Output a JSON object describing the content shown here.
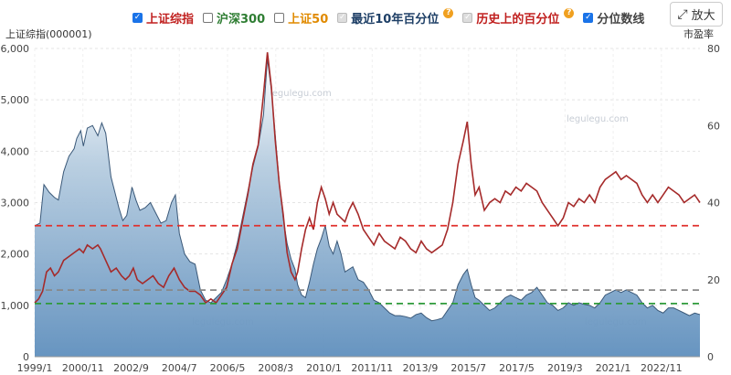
{
  "legend": [
    {
      "label": "上证综指",
      "color": "#c0201f",
      "state": "checked",
      "help": false
    },
    {
      "label": "沪深300",
      "color": "#2e7d32",
      "state": "unchecked",
      "help": false
    },
    {
      "label": "上证50",
      "color": "#e08a00",
      "state": "unchecked",
      "help": false
    },
    {
      "label": "最近10年百分位",
      "color": "#1e3f66",
      "state": "disabled",
      "help": true
    },
    {
      "label": "历史上的百分位",
      "color": "#c0201f",
      "state": "disabled",
      "help": true
    },
    {
      "label": "分位数线",
      "color": "#444444",
      "state": "checked",
      "help": false
    }
  ],
  "zoom_button": {
    "label": "放大",
    "icon": "expand-arrows-icon"
  },
  "watermark": "legulegu.com",
  "chart_data": {
    "type": "area",
    "yleft_label": "上证综指(000001)",
    "yright_label": "市盈率",
    "yleft_lim": [
      0,
      6000
    ],
    "yright_lim": [
      0,
      80
    ],
    "yleft_ticks": [
      "0",
      "1,000",
      "2,000",
      "3,000",
      "4,000",
      "5,000",
      "6,000"
    ],
    "yright_ticks": [
      "0",
      "20",
      "40",
      "60",
      "80"
    ],
    "x_ticks": [
      "1999/1",
      "2000/11",
      "2002/9",
      "2004/7",
      "2006/5",
      "2008/3",
      "2010/1",
      "2011/11",
      "2013/9",
      "2015/7",
      "2017/5",
      "2019/3",
      "2021/1",
      "2022/11"
    ],
    "x_start": 1999.0,
    "x_end": 2024.3,
    "quantile_lines": [
      {
        "axis": "right",
        "value": 34,
        "color": "#e0312d"
      },
      {
        "axis": "right",
        "value": 17.3,
        "color": "#888888"
      },
      {
        "axis": "right",
        "value": 13.8,
        "color": "#2e9a3a"
      }
    ],
    "series": [
      {
        "name": "上证综指",
        "axis": "left",
        "kind": "area",
        "color": "#5a83ad",
        "points": [
          [
            1999.0,
            2550
          ],
          [
            1999.2,
            2600
          ],
          [
            1999.35,
            3350
          ],
          [
            1999.55,
            3200
          ],
          [
            1999.75,
            3100
          ],
          [
            1999.9,
            3050
          ],
          [
            2000.1,
            3600
          ],
          [
            2000.3,
            3900
          ],
          [
            2000.5,
            4050
          ],
          [
            2000.6,
            4250
          ],
          [
            2000.75,
            4400
          ],
          [
            2000.85,
            4100
          ],
          [
            2001.0,
            4450
          ],
          [
            2001.2,
            4500
          ],
          [
            2001.4,
            4300
          ],
          [
            2001.55,
            4550
          ],
          [
            2001.7,
            4350
          ],
          [
            2001.9,
            3500
          ],
          [
            2002.0,
            3300
          ],
          [
            2002.2,
            2900
          ],
          [
            2002.35,
            2650
          ],
          [
            2002.5,
            2750
          ],
          [
            2002.7,
            3300
          ],
          [
            2002.85,
            3050
          ],
          [
            2003.0,
            2850
          ],
          [
            2003.2,
            2900
          ],
          [
            2003.4,
            3000
          ],
          [
            2003.6,
            2800
          ],
          [
            2003.8,
            2600
          ],
          [
            2004.0,
            2650
          ],
          [
            2004.2,
            3000
          ],
          [
            2004.35,
            3150
          ],
          [
            2004.5,
            2400
          ],
          [
            2004.7,
            2000
          ],
          [
            2004.9,
            1850
          ],
          [
            2005.1,
            1800
          ],
          [
            2005.3,
            1300
          ],
          [
            2005.5,
            1100
          ],
          [
            2005.7,
            1050
          ],
          [
            2005.9,
            1150
          ],
          [
            2006.1,
            1250
          ],
          [
            2006.3,
            1500
          ],
          [
            2006.5,
            1800
          ],
          [
            2006.7,
            2200
          ],
          [
            2006.9,
            2700
          ],
          [
            2007.1,
            3200
          ],
          [
            2007.3,
            3700
          ],
          [
            2007.5,
            4100
          ],
          [
            2007.7,
            4700
          ],
          [
            2007.85,
            5800
          ],
          [
            2008.0,
            5200
          ],
          [
            2008.15,
            4300
          ],
          [
            2008.3,
            3400
          ],
          [
            2008.45,
            2700
          ],
          [
            2008.6,
            2200
          ],
          [
            2008.75,
            1900
          ],
          [
            2008.9,
            1700
          ],
          [
            2009.0,
            1400
          ],
          [
            2009.15,
            1200
          ],
          [
            2009.3,
            1150
          ],
          [
            2009.45,
            1450
          ],
          [
            2009.6,
            1800
          ],
          [
            2009.75,
            2100
          ],
          [
            2009.9,
            2300
          ],
          [
            2010.05,
            2550
          ],
          [
            2010.2,
            2150
          ],
          [
            2010.35,
            2000
          ],
          [
            2010.5,
            2250
          ],
          [
            2010.65,
            2000
          ],
          [
            2010.8,
            1650
          ],
          [
            2010.95,
            1700
          ],
          [
            2011.1,
            1750
          ],
          [
            2011.3,
            1500
          ],
          [
            2011.5,
            1450
          ],
          [
            2011.7,
            1300
          ],
          [
            2011.9,
            1100
          ],
          [
            2012.1,
            1050
          ],
          [
            2012.3,
            950
          ],
          [
            2012.5,
            850
          ],
          [
            2012.7,
            800
          ],
          [
            2012.9,
            800
          ],
          [
            2013.1,
            780
          ],
          [
            2013.3,
            750
          ],
          [
            2013.5,
            820
          ],
          [
            2013.7,
            850
          ],
          [
            2013.9,
            760
          ],
          [
            2014.1,
            700
          ],
          [
            2014.3,
            720
          ],
          [
            2014.5,
            750
          ],
          [
            2014.7,
            900
          ],
          [
            2014.9,
            1050
          ],
          [
            2015.1,
            1400
          ],
          [
            2015.3,
            1600
          ],
          [
            2015.45,
            1700
          ],
          [
            2015.6,
            1400
          ],
          [
            2015.75,
            1150
          ],
          [
            2015.9,
            1100
          ],
          [
            2016.1,
            1000
          ],
          [
            2016.3,
            900
          ],
          [
            2016.5,
            950
          ],
          [
            2016.7,
            1050
          ],
          [
            2016.9,
            1150
          ],
          [
            2017.1,
            1200
          ],
          [
            2017.3,
            1150
          ],
          [
            2017.5,
            1100
          ],
          [
            2017.7,
            1200
          ],
          [
            2017.9,
            1250
          ],
          [
            2018.1,
            1350
          ],
          [
            2018.3,
            1200
          ],
          [
            2018.5,
            1050
          ],
          [
            2018.7,
            1000
          ],
          [
            2018.9,
            900
          ],
          [
            2019.1,
            950
          ],
          [
            2019.3,
            1050
          ],
          [
            2019.5,
            1000
          ],
          [
            2019.7,
            1050
          ],
          [
            2019.9,
            1020
          ],
          [
            2020.1,
            1000
          ],
          [
            2020.3,
            950
          ],
          [
            2020.5,
            1050
          ],
          [
            2020.7,
            1200
          ],
          [
            2020.9,
            1250
          ],
          [
            2021.1,
            1300
          ],
          [
            2021.3,
            1250
          ],
          [
            2021.5,
            1300
          ],
          [
            2021.7,
            1250
          ],
          [
            2021.9,
            1200
          ],
          [
            2022.1,
            1050
          ],
          [
            2022.3,
            950
          ],
          [
            2022.5,
            1000
          ],
          [
            2022.7,
            900
          ],
          [
            2022.9,
            850
          ],
          [
            2023.1,
            950
          ],
          [
            2023.3,
            950
          ],
          [
            2023.5,
            900
          ],
          [
            2023.7,
            850
          ],
          [
            2023.9,
            800
          ],
          [
            2024.1,
            850
          ],
          [
            2024.3,
            820
          ]
        ]
      },
      {
        "name": "市盈率",
        "axis": "right",
        "kind": "line",
        "color": "#a52a2a",
        "points": [
          [
            1999.0,
            14
          ],
          [
            1999.15,
            15
          ],
          [
            1999.3,
            17
          ],
          [
            1999.45,
            22
          ],
          [
            1999.6,
            23
          ],
          [
            1999.75,
            21
          ],
          [
            1999.9,
            22
          ],
          [
            2000.1,
            25
          ],
          [
            2000.3,
            26
          ],
          [
            2000.5,
            27
          ],
          [
            2000.7,
            28
          ],
          [
            2000.85,
            27
          ],
          [
            2001.0,
            29
          ],
          [
            2001.2,
            28
          ],
          [
            2001.4,
            29
          ],
          [
            2001.5,
            28
          ],
          [
            2001.7,
            25
          ],
          [
            2001.9,
            22
          ],
          [
            2002.1,
            23
          ],
          [
            2002.3,
            21
          ],
          [
            2002.45,
            20
          ],
          [
            2002.6,
            21
          ],
          [
            2002.75,
            23
          ],
          [
            2002.9,
            20
          ],
          [
            2003.1,
            19
          ],
          [
            2003.3,
            20
          ],
          [
            2003.5,
            21
          ],
          [
            2003.7,
            19
          ],
          [
            2003.9,
            18
          ],
          [
            2004.1,
            21
          ],
          [
            2004.3,
            23
          ],
          [
            2004.5,
            20
          ],
          [
            2004.7,
            18
          ],
          [
            2004.9,
            17
          ],
          [
            2005.1,
            17
          ],
          [
            2005.3,
            16
          ],
          [
            2005.5,
            14
          ],
          [
            2005.7,
            15
          ],
          [
            2005.9,
            14
          ],
          [
            2006.1,
            16
          ],
          [
            2006.3,
            18
          ],
          [
            2006.5,
            24
          ],
          [
            2006.7,
            28
          ],
          [
            2006.9,
            35
          ],
          [
            2007.1,
            42
          ],
          [
            2007.3,
            50
          ],
          [
            2007.5,
            55
          ],
          [
            2007.7,
            68
          ],
          [
            2007.85,
            79
          ],
          [
            2008.0,
            70
          ],
          [
            2008.15,
            56
          ],
          [
            2008.3,
            45
          ],
          [
            2008.45,
            37
          ],
          [
            2008.6,
            27
          ],
          [
            2008.75,
            22
          ],
          [
            2008.9,
            20
          ],
          [
            2009.0,
            22
          ],
          [
            2009.15,
            28
          ],
          [
            2009.3,
            33
          ],
          [
            2009.45,
            36
          ],
          [
            2009.6,
            33
          ],
          [
            2009.75,
            40
          ],
          [
            2009.9,
            44
          ],
          [
            2010.05,
            41
          ],
          [
            2010.2,
            37
          ],
          [
            2010.35,
            40
          ],
          [
            2010.5,
            37
          ],
          [
            2010.65,
            36
          ],
          [
            2010.8,
            35
          ],
          [
            2010.95,
            38
          ],
          [
            2011.1,
            40
          ],
          [
            2011.3,
            37
          ],
          [
            2011.5,
            33
          ],
          [
            2011.7,
            31
          ],
          [
            2011.9,
            29
          ],
          [
            2012.1,
            32
          ],
          [
            2012.3,
            30
          ],
          [
            2012.5,
            29
          ],
          [
            2012.7,
            28
          ],
          [
            2012.9,
            31
          ],
          [
            2013.1,
            30
          ],
          [
            2013.3,
            28
          ],
          [
            2013.5,
            27
          ],
          [
            2013.7,
            30
          ],
          [
            2013.9,
            28
          ],
          [
            2014.1,
            27
          ],
          [
            2014.3,
            28
          ],
          [
            2014.5,
            29
          ],
          [
            2014.7,
            33
          ],
          [
            2014.9,
            40
          ],
          [
            2015.1,
            50
          ],
          [
            2015.3,
            56
          ],
          [
            2015.45,
            61
          ],
          [
            2015.6,
            50
          ],
          [
            2015.75,
            42
          ],
          [
            2015.9,
            44
          ],
          [
            2016.1,
            38
          ],
          [
            2016.3,
            40
          ],
          [
            2016.5,
            41
          ],
          [
            2016.7,
            40
          ],
          [
            2016.9,
            43
          ],
          [
            2017.1,
            42
          ],
          [
            2017.3,
            44
          ],
          [
            2017.5,
            43
          ],
          [
            2017.7,
            45
          ],
          [
            2017.9,
            44
          ],
          [
            2018.1,
            43
          ],
          [
            2018.3,
            40
          ],
          [
            2018.5,
            38
          ],
          [
            2018.7,
            36
          ],
          [
            2018.9,
            34
          ],
          [
            2019.1,
            36
          ],
          [
            2019.3,
            40
          ],
          [
            2019.5,
            39
          ],
          [
            2019.7,
            41
          ],
          [
            2019.9,
            40
          ],
          [
            2020.1,
            42
          ],
          [
            2020.3,
            40
          ],
          [
            2020.5,
            44
          ],
          [
            2020.7,
            46
          ],
          [
            2020.9,
            47
          ],
          [
            2021.1,
            48
          ],
          [
            2021.3,
            46
          ],
          [
            2021.5,
            47
          ],
          [
            2021.7,
            46
          ],
          [
            2021.9,
            45
          ],
          [
            2022.1,
            42
          ],
          [
            2022.3,
            40
          ],
          [
            2022.5,
            42
          ],
          [
            2022.7,
            40
          ],
          [
            2022.9,
            42
          ],
          [
            2023.1,
            44
          ],
          [
            2023.3,
            43
          ],
          [
            2023.5,
            42
          ],
          [
            2023.7,
            40
          ],
          [
            2023.9,
            41
          ],
          [
            2024.1,
            42
          ],
          [
            2024.3,
            40
          ]
        ]
      }
    ]
  }
}
